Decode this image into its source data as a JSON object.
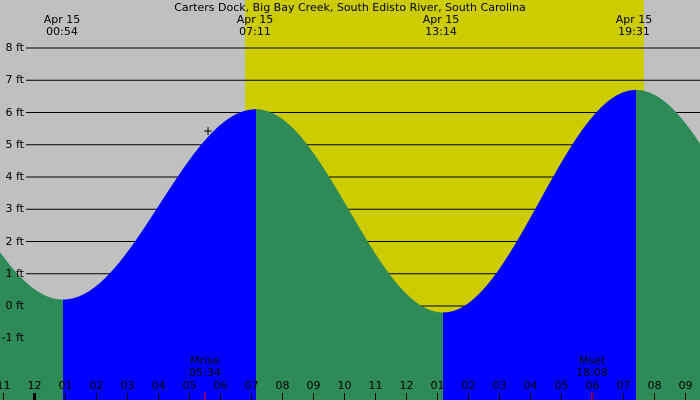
{
  "chart_data": {
    "type": "area",
    "title": "Carters Dock, Big Bay Creek, South Edisto River, South Carolina",
    "ylabel": "ft",
    "ylim": [
      -1.8,
      8.5
    ],
    "yticks": [
      "8 ft",
      "7 ft",
      "6 ft",
      "5 ft",
      "4 ft",
      "3 ft",
      "2 ft",
      "1 ft",
      "0 ft",
      "-1 ft"
    ],
    "ytick_values": [
      8,
      7,
      6,
      5,
      4,
      3,
      2,
      1,
      0,
      -1
    ],
    "xticks": [
      "11",
      "12",
      "01",
      "02",
      "03",
      "04",
      "05",
      "06",
      "07",
      "08",
      "09",
      "10",
      "11",
      "12",
      "01",
      "02",
      "03",
      "04",
      "05",
      "06",
      "07",
      "08",
      "09"
    ],
    "tide_events": [
      {
        "type": "low",
        "date": "Apr 15",
        "time": "00:54",
        "height_ft": 0.2
      },
      {
        "type": "high",
        "date": "Apr 15",
        "time": "07:11",
        "height_ft": 6.1
      },
      {
        "type": "low",
        "date": "Apr 15",
        "time": "13:14",
        "height_ft": -0.2
      },
      {
        "type": "high",
        "date": "Apr 15",
        "time": "19:31",
        "height_ft": 6.7
      }
    ],
    "moon_events": [
      {
        "label": "Mrise",
        "time": "05:34"
      },
      {
        "label": "Mset",
        "time": "18:08"
      }
    ],
    "colors": {
      "night": "#c0c0c0",
      "day": "#cccc00",
      "rising": "#0000ff",
      "falling": "#2e8b57",
      "grid": "#000000",
      "moon_tick": "#ff0000"
    },
    "grid": true
  },
  "header": {
    "title": "Carters Dock, Big Bay Creek, South Edisto River, South Carolina",
    "events": [
      {
        "date": "Apr 15",
        "time": "00:54"
      },
      {
        "date": "Apr 15",
        "time": "07:11"
      },
      {
        "date": "Apr 15",
        "time": "13:14"
      },
      {
        "date": "Apr 15",
        "time": "19:31"
      }
    ]
  },
  "moon": {
    "rise_label": "Mrise",
    "rise_time": "05:34",
    "set_label": "Mset",
    "set_time": "18:08"
  }
}
